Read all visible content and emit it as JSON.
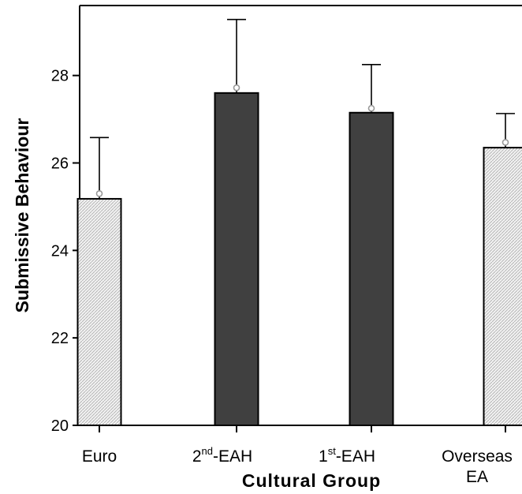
{
  "chart_data": {
    "type": "bar",
    "xlabel": "Cultural Group",
    "ylabel": "Submissive Behaviour",
    "ylim": [
      20,
      29.6
    ],
    "yticks": [
      "20",
      "22",
      "24",
      "26",
      "28"
    ],
    "categories": [
      {
        "main": "Euro",
        "sup": "",
        "rest": "",
        "line2": ""
      },
      {
        "main": "2",
        "sup": "nd",
        "rest": "-EAH",
        "line2": ""
      },
      {
        "main": "1",
        "sup": "st",
        "rest": "-EAH",
        "line2": ""
      },
      {
        "main": "Overseas",
        "sup": "",
        "rest": "",
        "line2": "EA"
      }
    ],
    "values": [
      25.18,
      27.6,
      27.15,
      26.35
    ],
    "error_upper": [
      26.58,
      29.28,
      28.25,
      27.13
    ],
    "markers": [
      25.3,
      27.72,
      27.25,
      26.47
    ],
    "bar_styles": [
      "hatched",
      "dark",
      "dark",
      "hatched"
    ],
    "grid": false,
    "legend": "none",
    "colors": {
      "dark_bar": "#404040",
      "hatched_bar": "#f2f2f2",
      "hatch_line": "#b0b0b0",
      "axis": "#000000",
      "marker": "#999999"
    }
  }
}
